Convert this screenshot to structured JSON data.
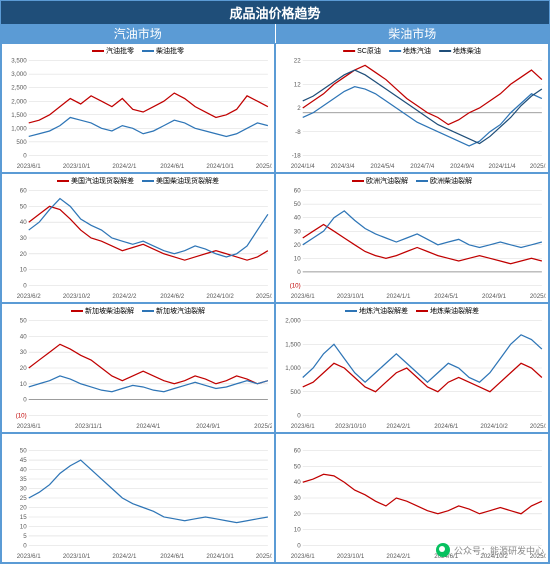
{
  "title": "成品油价格趋势",
  "subheaders": [
    "汽油市场",
    "柴油市场"
  ],
  "colors": {
    "red": "#c00000",
    "blue": "#2e75b6",
    "grid": "#d9d9d9",
    "axis": "#7f7f7f",
    "text": "#595959",
    "neg": "#c00000"
  },
  "font": {
    "tick": 6,
    "legend": 7
  },
  "charts": [
    {
      "legend": [
        {
          "label": "汽油批零",
          "color": "#c00000"
        },
        {
          "label": "柴油批零",
          "color": "#2e75b6"
        }
      ],
      "ylim": [
        0,
        3500
      ],
      "yticks": [
        0,
        500,
        1000,
        1500,
        2000,
        2500,
        3000,
        3500
      ],
      "xticks": [
        "2023/6/1",
        "2023/10/1",
        "2024/2/1",
        "2024/6/1",
        "2024/10/1",
        "2025/2/1"
      ],
      "series": [
        {
          "color": "#c00000",
          "data": [
            1200,
            1300,
            1500,
            1800,
            2100,
            1900,
            2200,
            2000,
            1800,
            2100,
            1700,
            1600,
            1800,
            2000,
            2300,
            2100,
            1800,
            1600,
            1400,
            1500,
            1700,
            2200,
            2000,
            1800
          ]
        },
        {
          "color": "#2e75b6",
          "data": [
            700,
            800,
            900,
            1100,
            1400,
            1300,
            1200,
            1000,
            900,
            1100,
            1000,
            800,
            900,
            1100,
            1300,
            1200,
            1000,
            900,
            800,
            700,
            800,
            1000,
            1200,
            1100
          ]
        }
      ]
    },
    {
      "legend": [
        {
          "label": "SC原油",
          "color": "#c00000"
        },
        {
          "label": "地炼汽油",
          "color": "#2e75b6"
        },
        {
          "label": "地炼柴油",
          "color": "#1f4e79"
        }
      ],
      "ylim": [
        -18,
        22
      ],
      "yticks": [
        -18,
        -8,
        2,
        12,
        22
      ],
      "xticks": [
        "2024/1/4",
        "2024/3/4",
        "2024/5/4",
        "2024/7/4",
        "2024/9/4",
        "2024/11/4",
        "2025/1/4"
      ],
      "series": [
        {
          "color": "#c00000",
          "data": [
            2,
            5,
            8,
            12,
            15,
            18,
            20,
            17,
            14,
            10,
            6,
            3,
            0,
            -2,
            -5,
            -3,
            0,
            2,
            5,
            8,
            12,
            15,
            18,
            14
          ]
        },
        {
          "color": "#2e75b6",
          "data": [
            -2,
            0,
            3,
            6,
            9,
            11,
            10,
            8,
            5,
            2,
            -1,
            -4,
            -6,
            -8,
            -10,
            -12,
            -14,
            -12,
            -8,
            -5,
            0,
            4,
            8,
            6
          ]
        },
        {
          "color": "#1f4e79",
          "data": [
            5,
            7,
            10,
            13,
            16,
            18,
            16,
            13,
            10,
            7,
            4,
            1,
            -2,
            -5,
            -7,
            -9,
            -11,
            -13,
            -10,
            -6,
            -2,
            3,
            7,
            10
          ]
        }
      ]
    },
    {
      "legend": [
        {
          "label": "美国汽油现货裂解差",
          "color": "#c00000"
        },
        {
          "label": "美国柴油现货裂解差",
          "color": "#2e75b6"
        }
      ],
      "ylim": [
        0,
        60
      ],
      "yticks": [
        0,
        10,
        20,
        30,
        40,
        50,
        60
      ],
      "xticks": [
        "2023/6/2",
        "2023/10/2",
        "2024/2/2",
        "2024/6/2",
        "2024/10/2",
        "2025/2/2"
      ],
      "series": [
        {
          "color": "#c00000",
          "data": [
            40,
            45,
            50,
            48,
            42,
            35,
            30,
            28,
            25,
            22,
            24,
            26,
            23,
            20,
            18,
            16,
            18,
            20,
            22,
            20,
            18,
            16,
            18,
            22
          ]
        },
        {
          "color": "#2e75b6",
          "data": [
            35,
            40,
            48,
            55,
            50,
            42,
            38,
            35,
            30,
            28,
            26,
            28,
            25,
            22,
            20,
            22,
            25,
            23,
            20,
            18,
            20,
            25,
            35,
            45
          ]
        }
      ]
    },
    {
      "legend": [
        {
          "label": "欧洲汽油裂解",
          "color": "#c00000"
        },
        {
          "label": "欧洲柴油裂解",
          "color": "#2e75b6"
        }
      ],
      "ylim": [
        -10,
        60
      ],
      "yticks": [
        -10,
        0,
        10,
        20,
        30,
        40,
        50,
        60
      ],
      "neg_ticks": [
        -10
      ],
      "xticks": [
        "2023/6/1",
        "2023/10/1",
        "2024/1/1",
        "2024/5/1",
        "2024/9/1",
        "2025/2/1"
      ],
      "series": [
        {
          "color": "#c00000",
          "data": [
            25,
            30,
            35,
            30,
            25,
            20,
            15,
            12,
            10,
            12,
            15,
            18,
            15,
            12,
            10,
            8,
            10,
            12,
            10,
            8,
            6,
            8,
            10,
            8
          ]
        },
        {
          "color": "#2e75b6",
          "data": [
            20,
            25,
            30,
            40,
            45,
            38,
            32,
            28,
            25,
            22,
            25,
            28,
            24,
            20,
            22,
            24,
            20,
            18,
            20,
            22,
            20,
            18,
            20,
            22
          ]
        }
      ]
    },
    {
      "legend": [
        {
          "label": "新加坡柴油裂解",
          "color": "#c00000"
        },
        {
          "label": "新加坡汽油裂解",
          "color": "#2e75b6"
        }
      ],
      "ylim": [
        -10,
        50
      ],
      "yticks": [
        -10,
        0,
        10,
        20,
        30,
        40,
        50
      ],
      "neg_ticks": [
        -10
      ],
      "xticks": [
        "2023/6/1",
        "2023/11/1",
        "2024/4/1",
        "2024/9/1",
        "2025/2/16"
      ],
      "series": [
        {
          "color": "#c00000",
          "data": [
            20,
            25,
            30,
            35,
            32,
            28,
            25,
            20,
            15,
            12,
            15,
            18,
            15,
            12,
            10,
            12,
            15,
            13,
            10,
            12,
            15,
            13,
            10,
            12
          ]
        },
        {
          "color": "#2e75b6",
          "data": [
            8,
            10,
            12,
            15,
            13,
            10,
            8,
            6,
            5,
            7,
            9,
            8,
            6,
            5,
            7,
            9,
            11,
            9,
            7,
            8,
            10,
            12,
            10,
            12
          ]
        }
      ]
    },
    {
      "legend": [
        {
          "label": "地炼汽油裂解差",
          "color": "#2e75b6"
        },
        {
          "label": "地炼柴油裂解差",
          "color": "#c00000"
        }
      ],
      "ylim": [
        0,
        2000
      ],
      "yticks": [
        0,
        500,
        1000,
        1500,
        2000
      ],
      "xticks": [
        "2023/6/1",
        "2023/10/10",
        "2024/2/1",
        "2024/6/1",
        "2024/10/2",
        "2025/2/1"
      ],
      "series": [
        {
          "color": "#2e75b6",
          "data": [
            800,
            1000,
            1300,
            1500,
            1200,
            900,
            700,
            900,
            1100,
            1300,
            1100,
            900,
            700,
            900,
            1100,
            1000,
            800,
            700,
            900,
            1200,
            1500,
            1700,
            1600,
            1400
          ]
        },
        {
          "color": "#c00000",
          "data": [
            600,
            700,
            900,
            1100,
            1000,
            800,
            600,
            500,
            700,
            900,
            1000,
            800,
            600,
            500,
            700,
            800,
            700,
            600,
            500,
            700,
            900,
            1100,
            1000,
            800
          ]
        }
      ]
    },
    {
      "legend": [],
      "ylim": [
        0,
        50
      ],
      "yticks": [
        0,
        5,
        10,
        15,
        20,
        25,
        30,
        35,
        40,
        45,
        50
      ],
      "xticks": [
        "2023/6/1",
        "2023/10/1",
        "2024/2/1",
        "2024/6/1",
        "2024/10/1",
        "2025/2/1"
      ],
      "series": [
        {
          "color": "#2e75b6",
          "data": [
            25,
            28,
            32,
            38,
            42,
            45,
            40,
            35,
            30,
            25,
            22,
            20,
            18,
            15,
            14,
            13,
            14,
            15,
            14,
            13,
            12,
            13,
            14,
            15
          ]
        }
      ]
    },
    {
      "legend": [],
      "ylim": [
        0,
        60
      ],
      "yticks": [
        0,
        10,
        20,
        30,
        40,
        50,
        60
      ],
      "xticks": [
        "2023/6/1",
        "2023/10/1",
        "2024/2/1",
        "2024/6/1",
        "2024/10/2",
        "2025/2/2"
      ],
      "series": [
        {
          "color": "#c00000",
          "data": [
            40,
            42,
            45,
            44,
            40,
            35,
            32,
            28,
            25,
            30,
            28,
            25,
            22,
            20,
            22,
            25,
            23,
            20,
            22,
            24,
            22,
            20,
            25,
            28
          ]
        }
      ]
    }
  ],
  "footer": {
    "prefix": "公众号：",
    "name": "能源研发中心"
  }
}
